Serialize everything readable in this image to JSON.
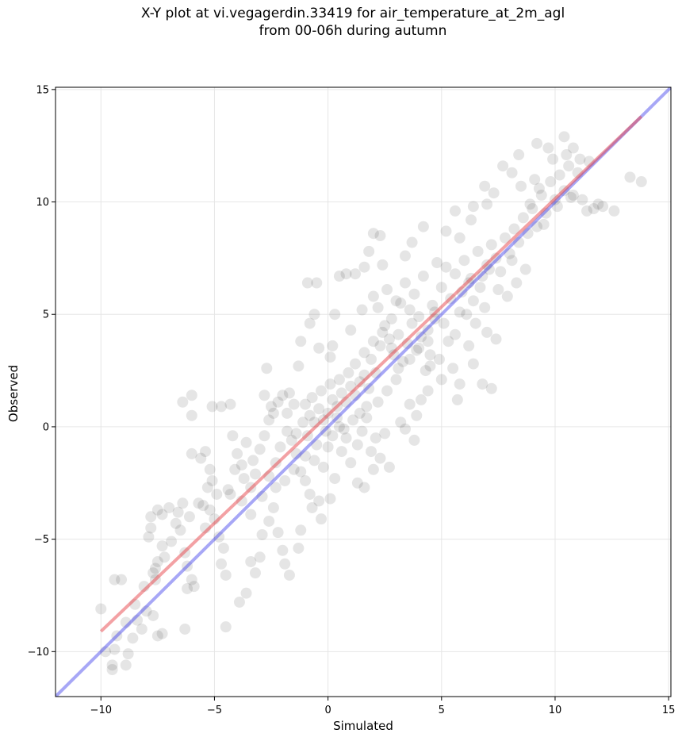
{
  "chart_data": {
    "type": "scatter",
    "title_line1": "X-Y plot at vi.vegagerdin.33419 for air_temperature_at_2m_agl",
    "title_line2": "from 00-06h during autumn",
    "xlabel": "Simulated",
    "ylabel": "Observed",
    "xlim": [
      -12,
      15.1
    ],
    "ylim": [
      -12,
      15.1
    ],
    "x_ticks": [
      -10,
      -5,
      0,
      5,
      10,
      15
    ],
    "y_ticks": [
      -10,
      -5,
      0,
      5,
      10,
      15
    ],
    "x_tick_labels": [
      "−10",
      "−5",
      "0",
      "5",
      "10",
      "15"
    ],
    "y_tick_labels": [
      "−10",
      "−5",
      "0",
      "5",
      "10",
      "15"
    ],
    "grid": true,
    "legend": "none",
    "colors": {
      "points": "#000000",
      "regression_line": "#e8434a",
      "identity_line": "#3b3bea",
      "grid": "#e6e6e6"
    },
    "regression_line": {
      "x": [
        -10,
        13.8
      ],
      "y": [
        -9.1,
        13.8
      ]
    },
    "identity_line": {
      "x": [
        -12,
        15.1
      ],
      "y": [
        -12,
        15.1
      ]
    },
    "points": [
      [
        -10,
        -8.1
      ],
      [
        -9.4,
        -6.8
      ],
      [
        -9.1,
        -6.8
      ],
      [
        -9.5,
        -10.6
      ],
      [
        -9.5,
        -10.8
      ],
      [
        -9.4,
        -9.9
      ],
      [
        -8.9,
        -10.6
      ],
      [
        -8.8,
        -10.1
      ],
      [
        -8.6,
        -9.4
      ],
      [
        -8.2,
        -9.0
      ],
      [
        -8.4,
        -8.6
      ],
      [
        -8.0,
        -8.2
      ],
      [
        -7.7,
        -8.4
      ],
      [
        -7.6,
        -6.8
      ],
      [
        -7.5,
        -9.3
      ],
      [
        -7.3,
        -9.2
      ],
      [
        -7.7,
        -6.5
      ],
      [
        -7.5,
        -6.0
      ],
      [
        -7.3,
        -5.3
      ],
      [
        -7.9,
        -4.9
      ],
      [
        -7.8,
        -4.5
      ],
      [
        -7.8,
        -4.0
      ],
      [
        -7.5,
        -3.7
      ],
      [
        -7.3,
        -3.9
      ],
      [
        -7.0,
        -3.6
      ],
      [
        -6.6,
        -3.8
      ],
      [
        -6.4,
        -3.4
      ],
      [
        -6.7,
        -4.3
      ],
      [
        -6.3,
        -5.6
      ],
      [
        -6.2,
        -6.2
      ],
      [
        -6.0,
        -6.8
      ],
      [
        -5.9,
        -7.1
      ],
      [
        -6.2,
        -7.2
      ],
      [
        -6.3,
        -9.0
      ],
      [
        -5.5,
        -3.5
      ],
      [
        -5.2,
        -3.7
      ],
      [
        -5.0,
        -4.1
      ],
      [
        -5.4,
        -4.5
      ],
      [
        -4.8,
        -4.9
      ],
      [
        -4.6,
        -5.4
      ],
      [
        -4.7,
        -6.1
      ],
      [
        -4.5,
        -6.6
      ],
      [
        -4.5,
        -8.9
      ],
      [
        -3.9,
        -7.8
      ],
      [
        -3.6,
        -7.4
      ],
      [
        -3.2,
        -6.5
      ],
      [
        -3.4,
        -6.0
      ],
      [
        -3.0,
        -5.8
      ],
      [
        -2.9,
        -4.8
      ],
      [
        -2.6,
        -4.2
      ],
      [
        -2.4,
        -3.6
      ],
      [
        -2.2,
        -4.7
      ],
      [
        -2.0,
        -5.5
      ],
      [
        -1.9,
        -6.1
      ],
      [
        -1.7,
        -6.6
      ],
      [
        -1.3,
        -5.4
      ],
      [
        -1.2,
        -4.6
      ],
      [
        -6.4,
        1.1
      ],
      [
        -6.0,
        1.4
      ],
      [
        -6.0,
        0.5
      ],
      [
        -6.0,
        -1.2
      ],
      [
        -5.6,
        -1.4
      ],
      [
        -5.4,
        -1.1
      ],
      [
        -5.2,
        -1.9
      ],
      [
        -5.1,
        -2.4
      ],
      [
        -5.1,
        0.9
      ],
      [
        -4.7,
        0.9
      ],
      [
        -4.3,
        1.0
      ],
      [
        -4.2,
        -0.4
      ],
      [
        -4.0,
        -1.2
      ],
      [
        -3.8,
        -1.7
      ],
      [
        -3.7,
        -2.3
      ],
      [
        -3.4,
        -2.7
      ],
      [
        -3.2,
        -2.1
      ],
      [
        -3.0,
        -1.0
      ],
      [
        -2.8,
        -0.4
      ],
      [
        -2.6,
        0.3
      ],
      [
        -2.4,
        0.6
      ],
      [
        -2.2,
        1.1
      ],
      [
        -2.0,
        1.4
      ],
      [
        -2.8,
        1.4
      ],
      [
        -2.7,
        2.6
      ],
      [
        -2.5,
        0.9
      ],
      [
        -1.8,
        -0.2
      ],
      [
        -1.6,
        -0.6
      ],
      [
        -1.4,
        -1.2
      ],
      [
        -1.2,
        -2.0
      ],
      [
        -1.0,
        -2.4
      ],
      [
        -0.8,
        -3.0
      ],
      [
        -0.7,
        -3.6
      ],
      [
        -0.4,
        -3.3
      ],
      [
        -0.3,
        -4.1
      ],
      [
        0.1,
        -3.2
      ],
      [
        -1.3,
        2.7
      ],
      [
        -1.2,
        3.8
      ],
      [
        -0.8,
        4.6
      ],
      [
        -0.9,
        6.4
      ],
      [
        -0.5,
        6.4
      ],
      [
        -0.6,
        5.0
      ],
      [
        -0.4,
        3.5
      ],
      [
        0.2,
        3.6
      ],
      [
        0.1,
        3.1
      ],
      [
        0.3,
        5.0
      ],
      [
        0.5,
        6.7
      ],
      [
        0.8,
        6.8
      ],
      [
        1.2,
        6.8
      ],
      [
        1.6,
        7.1
      ],
      [
        1.8,
        7.8
      ],
      [
        2.0,
        8.6
      ],
      [
        2.3,
        8.5
      ],
      [
        2.4,
        7.2
      ],
      [
        2.0,
        5.8
      ],
      [
        1.5,
        5.2
      ],
      [
        1.0,
        4.3
      ],
      [
        -1.0,
        1.0
      ],
      [
        -0.8,
        0.5
      ],
      [
        -0.6,
        0.2
      ],
      [
        -0.4,
        0.8
      ],
      [
        -0.2,
        0.3
      ],
      [
        0.0,
        0.6
      ],
      [
        0.2,
        1.2
      ],
      [
        0.4,
        0.9
      ],
      [
        0.6,
        1.5
      ],
      [
        0.8,
        1.1
      ],
      [
        1.0,
        1.8
      ],
      [
        1.2,
        1.4
      ],
      [
        1.4,
        2.0
      ],
      [
        1.6,
        2.3
      ],
      [
        1.8,
        1.7
      ],
      [
        0.2,
        -0.4
      ],
      [
        0.5,
        0.0
      ],
      [
        0.8,
        -0.5
      ],
      [
        1.1,
        0.3
      ],
      [
        1.3,
        -0.8
      ],
      [
        1.5,
        -0.2
      ],
      [
        1.7,
        0.4
      ],
      [
        1.9,
        -1.1
      ],
      [
        2.1,
        -0.5
      ],
      [
        2.3,
        -1.4
      ],
      [
        2.5,
        -0.3
      ],
      [
        2.7,
        -1.8
      ],
      [
        1.0,
        -1.6
      ],
      [
        1.3,
        -2.5
      ],
      [
        1.6,
        -2.7
      ],
      [
        2.0,
        -1.9
      ],
      [
        -0.2,
        -1.8
      ],
      [
        0.3,
        -2.3
      ],
      [
        0.6,
        -1.1
      ],
      [
        -0.5,
        -0.8
      ],
      [
        -1.4,
        -0.3
      ],
      [
        -1.8,
        0.6
      ],
      [
        -2.1,
        -0.9
      ],
      [
        1.9,
        3.0
      ],
      [
        2.1,
        2.4
      ],
      [
        2.3,
        3.6
      ],
      [
        2.5,
        4.5
      ],
      [
        2.7,
        3.9
      ],
      [
        2.9,
        3.2
      ],
      [
        3.1,
        4.1
      ],
      [
        3.3,
        2.9
      ],
      [
        3.5,
        3.7
      ],
      [
        3.7,
        4.6
      ],
      [
        3.9,
        3.4
      ],
      [
        4.1,
        4.0
      ],
      [
        4.3,
        2.5
      ],
      [
        4.5,
        3.2
      ],
      [
        4.7,
        4.8
      ],
      [
        2.2,
        5.3
      ],
      [
        2.6,
        6.1
      ],
      [
        3.0,
        5.6
      ],
      [
        3.4,
        6.4
      ],
      [
        3.8,
        5.9
      ],
      [
        4.2,
        6.7
      ],
      [
        4.6,
        5.4
      ],
      [
        5.0,
        6.2
      ],
      [
        5.2,
        7.1
      ],
      [
        5.4,
        5.7
      ],
      [
        5.6,
        6.8
      ],
      [
        5.8,
        5.1
      ],
      [
        6.0,
        7.4
      ],
      [
        6.2,
        6.4
      ],
      [
        6.4,
        5.6
      ],
      [
        6.6,
        7.8
      ],
      [
        6.8,
        6.7
      ],
      [
        7.0,
        7.2
      ],
      [
        7.2,
        8.1
      ],
      [
        7.4,
        7.5
      ],
      [
        7.6,
        6.9
      ],
      [
        7.8,
        8.4
      ],
      [
        8.0,
        7.7
      ],
      [
        8.2,
        8.8
      ],
      [
        8.4,
        8.2
      ],
      [
        8.6,
        9.3
      ],
      [
        8.8,
        8.6
      ],
      [
        9.0,
        9.7
      ],
      [
        9.2,
        8.9
      ],
      [
        9.4,
        10.3
      ],
      [
        9.6,
        9.5
      ],
      [
        9.8,
        10.9
      ],
      [
        10.0,
        10.1
      ],
      [
        10.2,
        11.2
      ],
      [
        10.4,
        10.5
      ],
      [
        10.6,
        11.6
      ],
      [
        10.8,
        10.3
      ],
      [
        11.0,
        11.3
      ],
      [
        11.2,
        10.1
      ],
      [
        11.4,
        9.6
      ],
      [
        11.7,
        9.7
      ],
      [
        11.9,
        9.9
      ],
      [
        11.5,
        11.8
      ],
      [
        10.5,
        12.1
      ],
      [
        10.4,
        12.9
      ],
      [
        9.7,
        12.4
      ],
      [
        9.2,
        12.6
      ],
      [
        8.4,
        12.1
      ],
      [
        7.7,
        11.6
      ],
      [
        8.1,
        11.3
      ],
      [
        8.5,
        10.7
      ],
      [
        7.3,
        10.4
      ],
      [
        6.9,
        10.7
      ],
      [
        6.4,
        9.8
      ],
      [
        5.6,
        9.6
      ],
      [
        5.2,
        8.7
      ],
      [
        4.2,
        8.9
      ],
      [
        3.7,
        8.2
      ],
      [
        3.4,
        7.6
      ],
      [
        4.8,
        7.3
      ],
      [
        5.8,
        8.4
      ],
      [
        6.3,
        9.2
      ],
      [
        7.0,
        9.9
      ],
      [
        9.1,
        11.0
      ],
      [
        9.9,
        11.9
      ],
      [
        10.8,
        12.4
      ],
      [
        13.3,
        11.1
      ],
      [
        13.8,
        10.9
      ],
      [
        12.6,
        9.6
      ],
      [
        12.1,
        9.8
      ],
      [
        4.1,
        1.2
      ],
      [
        3.6,
        1.0
      ],
      [
        3.2,
        0.2
      ],
      [
        3.8,
        -0.6
      ],
      [
        3.4,
        -0.1
      ],
      [
        3.9,
        0.5
      ],
      [
        4.4,
        1.6
      ],
      [
        5.0,
        2.1
      ],
      [
        5.5,
        2.6
      ],
      [
        5.8,
        1.9
      ],
      [
        5.7,
        1.2
      ],
      [
        6.4,
        2.8
      ],
      [
        6.8,
        1.9
      ],
      [
        7.2,
        1.7
      ],
      [
        7.4,
        3.9
      ],
      [
        7.0,
        4.2
      ],
      [
        6.2,
        3.6
      ],
      [
        5.6,
        4.1
      ],
      [
        5.1,
        4.6
      ],
      [
        4.7,
        5.1
      ],
      [
        4.4,
        4.3
      ],
      [
        4.0,
        4.9
      ],
      [
        3.6,
        5.2
      ],
      [
        3.2,
        5.5
      ],
      [
        2.8,
        4.8
      ],
      [
        2.4,
        4.2
      ],
      [
        2.0,
        3.8
      ],
      [
        1.6,
        3.3
      ],
      [
        1.2,
        2.8
      ],
      [
        0.9,
        2.4
      ],
      [
        0.5,
        2.1
      ],
      [
        0.1,
        1.9
      ],
      [
        -0.3,
        1.6
      ],
      [
        -0.7,
        1.3
      ],
      [
        7.9,
        5.8
      ],
      [
        8.3,
        6.4
      ],
      [
        8.7,
        7.0
      ],
      [
        8.1,
        7.4
      ],
      [
        7.5,
        6.1
      ],
      [
        6.9,
        5.3
      ],
      [
        6.5,
        4.6
      ],
      [
        6.1,
        5.0
      ],
      [
        5.3,
        3.8
      ],
      [
        4.9,
        3.0
      ],
      [
        4.5,
        2.7
      ],
      [
        3.0,
        2.1
      ],
      [
        2.6,
        1.6
      ],
      [
        2.2,
        1.1
      ],
      [
        1.7,
        0.9
      ],
      [
        1.4,
        0.6
      ],
      [
        0.7,
        -0.1
      ],
      [
        0.4,
        0.4
      ],
      [
        -0.1,
        -0.2
      ],
      [
        -0.9,
        -0.4
      ],
      [
        -1.1,
        0.2
      ],
      [
        -1.5,
        1.0
      ],
      [
        -1.7,
        1.5
      ],
      [
        -2.3,
        -1.6
      ],
      [
        -2.6,
        -2.2
      ],
      [
        -3.3,
        -1.5
      ],
      [
        -3.6,
        -0.7
      ],
      [
        -4.1,
        -1.9
      ],
      [
        -4.4,
        -2.8
      ],
      [
        -4.9,
        -3.0
      ],
      [
        -5.3,
        -2.7
      ],
      [
        -5.7,
        -3.4
      ],
      [
        -6.1,
        -4.0
      ],
      [
        -6.5,
        -4.6
      ],
      [
        -6.9,
        -5.1
      ],
      [
        -7.2,
        -5.8
      ],
      [
        -7.6,
        -6.3
      ],
      [
        -8.1,
        -7.1
      ],
      [
        -8.5,
        -7.9
      ],
      [
        -8.9,
        -8.7
      ],
      [
        -9.3,
        -9.3
      ],
      [
        -9.8,
        -10.0
      ],
      [
        -4.3,
        -3.0
      ],
      [
        -3.8,
        -3.3
      ],
      [
        -3.4,
        -3.9
      ],
      [
        -2.9,
        -3.1
      ],
      [
        -2.3,
        -2.7
      ],
      [
        -1.9,
        -2.4
      ],
      [
        -1.5,
        -1.9
      ],
      [
        -1.0,
        -1.3
      ],
      [
        -0.6,
        -1.5
      ],
      [
        0.0,
        -0.9
      ],
      [
        3.6,
        3.0
      ],
      [
        4.0,
        3.5
      ],
      [
        4.4,
        3.8
      ],
      [
        2.8,
        3.5
      ],
      [
        3.1,
        2.6
      ],
      [
        5.9,
        6.0
      ],
      [
        6.3,
        6.6
      ],
      [
        6.7,
        6.2
      ],
      [
        7.1,
        7.0
      ],
      [
        9.5,
        9.0
      ],
      [
        10.1,
        9.8
      ],
      [
        10.7,
        10.2
      ],
      [
        8.9,
        9.9
      ],
      [
        9.3,
        10.6
      ],
      [
        11.1,
        11.9
      ]
    ]
  }
}
